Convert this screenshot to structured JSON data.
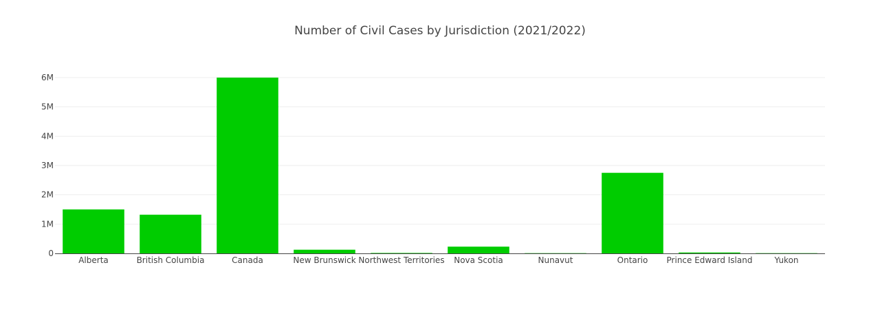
{
  "chart_data": {
    "type": "bar",
    "title": "Number of Civil Cases by Jurisdiction (2021/2022)",
    "xlabel": "",
    "ylabel": "",
    "categories": [
      "Alberta",
      "British Columbia",
      "Canada",
      "New Brunswick",
      "Northwest Territories",
      "Nova Scotia",
      "Nunavut",
      "Ontario",
      "Prince Edward Island",
      "Yukon"
    ],
    "values": [
      1500000,
      1320000,
      6000000,
      125000,
      15000,
      230000,
      8000,
      2750000,
      30000,
      8000
    ],
    "ylim": [
      0,
      6000000
    ],
    "yticks": [
      0,
      1000000,
      2000000,
      3000000,
      4000000,
      5000000,
      6000000
    ],
    "ytick_labels": [
      "0",
      "1M",
      "2M",
      "3M",
      "4M",
      "5M",
      "6M"
    ],
    "bar_color": "#00cc00",
    "grid": true,
    "legend": "none"
  }
}
